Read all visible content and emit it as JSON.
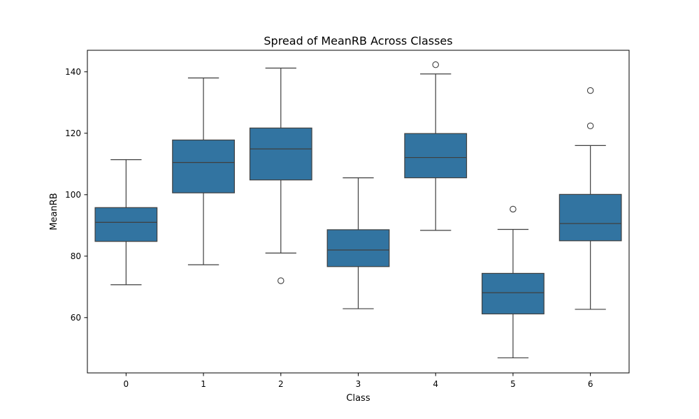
{
  "chart_data": {
    "type": "box",
    "title": "Spread of MeanRB Across Classes",
    "xlabel": "Class",
    "ylabel": "MeanRB",
    "ylim": [
      42,
      147
    ],
    "yticks": [
      60,
      80,
      100,
      120,
      140
    ],
    "grid": false,
    "box_color": "#3274a1",
    "line_color": "#3f3f3f",
    "categories": [
      "0",
      "1",
      "2",
      "3",
      "4",
      "5",
      "6"
    ],
    "boxes": [
      {
        "category": "0",
        "whisker_low": 70.7,
        "q1": 84.8,
        "median": 91.0,
        "q3": 95.8,
        "whisker_high": 111.4,
        "outliers": []
      },
      {
        "category": "1",
        "whisker_low": 77.2,
        "q1": 100.6,
        "median": 110.5,
        "q3": 117.8,
        "whisker_high": 138.0,
        "outliers": []
      },
      {
        "category": "2",
        "whisker_low": 81.0,
        "q1": 104.8,
        "median": 114.9,
        "q3": 121.7,
        "whisker_high": 141.2,
        "outliers": [
          72.0
        ]
      },
      {
        "category": "3",
        "whisker_low": 62.9,
        "q1": 76.6,
        "median": 82.0,
        "q3": 88.6,
        "whisker_high": 105.5,
        "outliers": []
      },
      {
        "category": "4",
        "whisker_low": 88.4,
        "q1": 105.5,
        "median": 112.1,
        "q3": 119.9,
        "whisker_high": 139.3,
        "outliers": [
          142.3
        ]
      },
      {
        "category": "5",
        "whisker_low": 46.9,
        "q1": 61.2,
        "median": 68.1,
        "q3": 74.4,
        "whisker_high": 88.7,
        "outliers": [
          95.3
        ]
      },
      {
        "category": "6",
        "whisker_low": 62.7,
        "q1": 85.0,
        "median": 90.6,
        "q3": 100.1,
        "whisker_high": 116.0,
        "outliers": [
          122.4,
          133.9
        ]
      }
    ]
  }
}
